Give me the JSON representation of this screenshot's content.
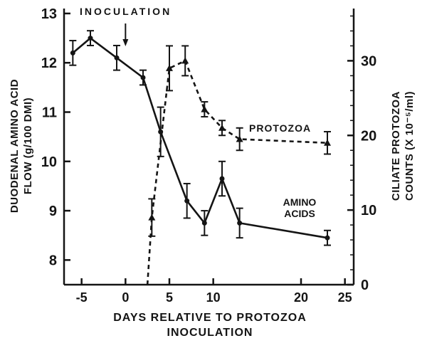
{
  "figure": {
    "background": "#ffffff",
    "ink": "#141414"
  },
  "chart_data": {
    "type": "line",
    "title": "",
    "xlabel_line1": "DAYS RELATIVE TO PROTOZOA",
    "xlabel_line2": "INOCULATION",
    "left_axis_title": {
      "line1": "DUODENAL AMINO ACID",
      "line2": "FLOW (g/100 DMI)"
    },
    "right_axis_title": {
      "line1": "CILIATE PROTOZOA",
      "line2": "COUNTS (X 10⁻⁵/ml)"
    },
    "xlim": [
      -7,
      26
    ],
    "x_ticks": [
      -5,
      0,
      5,
      10,
      20,
      25
    ],
    "left_axis": {
      "lim": [
        7.5,
        13.1
      ],
      "ticks": [
        8,
        9,
        10,
        11,
        12,
        13
      ]
    },
    "right_axis": {
      "lim": [
        0,
        37
      ],
      "ticks": [
        0,
        10,
        20,
        30
      ],
      "minor_step": 2
    },
    "grid": false,
    "annotation": {
      "label": "INOCULATION",
      "x": 0
    },
    "series": [
      {
        "name": "AMINO ACIDS",
        "axis": "left",
        "style": "solid",
        "marker": "circle",
        "points": [
          {
            "x": -6,
            "y": 12.2,
            "err": 0.25
          },
          {
            "x": -4,
            "y": 12.5,
            "err": 0.15
          },
          {
            "x": -1,
            "y": 12.1,
            "err": 0.25
          },
          {
            "x": 2,
            "y": 11.7,
            "err": 0.15
          },
          {
            "x": 4,
            "y": 10.6,
            "err": 0.5
          },
          {
            "x": 7,
            "y": 9.2,
            "err": 0.35
          },
          {
            "x": 9,
            "y": 8.75,
            "err": 0.25
          },
          {
            "x": 11,
            "y": 9.65,
            "err": 0.35
          },
          {
            "x": 13,
            "y": 8.75,
            "err": 0.3
          },
          {
            "x": 23,
            "y": 8.45,
            "err": 0.15
          }
        ]
      },
      {
        "name": "PROTOZOA",
        "axis": "right",
        "style": "dashed",
        "marker": "triangle",
        "points": [
          {
            "x": 2.5,
            "y": 0,
            "err": 0,
            "no_marker": true
          },
          {
            "x": 3,
            "y": 9,
            "err": 2.5
          },
          {
            "x": 5,
            "y": 29,
            "err": 3
          },
          {
            "x": 6.8,
            "y": 30,
            "err": 2
          },
          {
            "x": 9,
            "y": 23.5,
            "err": 1
          },
          {
            "x": 11,
            "y": 21,
            "err": 1
          },
          {
            "x": 13,
            "y": 19.5,
            "err": 1.5
          },
          {
            "x": 23,
            "y": 19,
            "err": 1.5
          }
        ]
      }
    ]
  }
}
